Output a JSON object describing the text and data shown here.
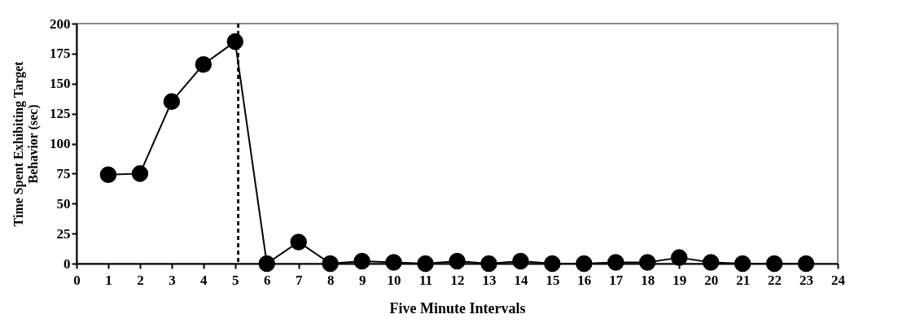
{
  "chart_data": {
    "type": "line",
    "xlabel": "Five Minute Intervals",
    "ylabel": "Time Spent  Exhibiting Target\nBehavior (sec)",
    "x": [
      1,
      2,
      3,
      4,
      5,
      6,
      7,
      8,
      9,
      10,
      11,
      12,
      13,
      14,
      15,
      16,
      17,
      18,
      19,
      20,
      21,
      22,
      23
    ],
    "series": [
      {
        "color": "#000000",
        "values": [
          74,
          75,
          135,
          166,
          185,
          0,
          18,
          0,
          2,
          1,
          0,
          2,
          0,
          2,
          0,
          0,
          1,
          1,
          5,
          1,
          0,
          0,
          0
        ]
      }
    ],
    "xlim": [
      0,
      24
    ],
    "xticks": [
      0,
      1,
      2,
      3,
      4,
      5,
      6,
      7,
      8,
      9,
      10,
      11,
      12,
      13,
      14,
      15,
      16,
      17,
      18,
      19,
      20,
      21,
      22,
      23,
      24
    ],
    "ylim": [
      0,
      200
    ],
    "yticks": [
      0,
      25,
      50,
      75,
      100,
      125,
      150,
      175,
      200
    ],
    "ref_lines": [
      {
        "axis": "x",
        "value": 5.1,
        "color": "#000000",
        "line_style": "dashed"
      }
    ],
    "grid": false,
    "legend": false,
    "marker": "circle",
    "line_style": "solid"
  }
}
